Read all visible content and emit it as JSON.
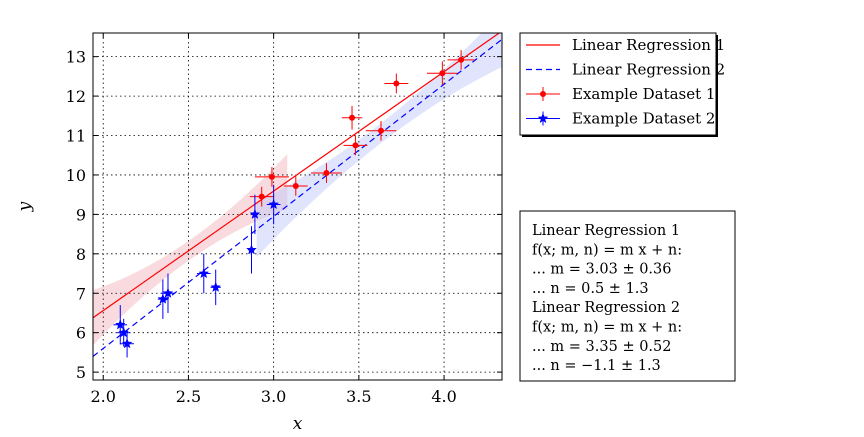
{
  "chart_data": {
    "type": "scatter",
    "xlabel": "x",
    "ylabel": "y",
    "xlim": [
      1.94,
      4.34
    ],
    "ylim": [
      4.8,
      13.6
    ],
    "grid": true,
    "legend_placement": "outside-top-right",
    "x_ticks": [
      "2.0",
      "2.5",
      "3.0",
      "3.5",
      "4.0"
    ],
    "y_ticks": [
      "5",
      "6",
      "7",
      "8",
      "9",
      "10",
      "11",
      "12",
      "13"
    ],
    "series": [
      {
        "name": "Example Dataset 1",
        "kind": "errorbar",
        "color": "#ff0000",
        "marker": "circle",
        "points": [
          {
            "x": 2.93,
            "y": 9.45,
            "xerr": 0.07,
            "yerr": 0.25
          },
          {
            "x": 2.99,
            "y": 9.95,
            "xerr": 0.1,
            "yerr": 0.25
          },
          {
            "x": 3.13,
            "y": 9.72,
            "xerr": 0.07,
            "yerr": 0.25
          },
          {
            "x": 3.31,
            "y": 10.05,
            "xerr": 0.09,
            "yerr": 0.25
          },
          {
            "x": 3.46,
            "y": 11.45,
            "xerr": 0.06,
            "yerr": 0.3
          },
          {
            "x": 3.48,
            "y": 10.75,
            "xerr": 0.07,
            "yerr": 0.25
          },
          {
            "x": 3.63,
            "y": 11.12,
            "xerr": 0.09,
            "yerr": 0.25
          },
          {
            "x": 3.72,
            "y": 12.32,
            "xerr": 0.07,
            "yerr": 0.25
          },
          {
            "x": 3.99,
            "y": 12.58,
            "xerr": 0.09,
            "yerr": 0.3
          },
          {
            "x": 4.1,
            "y": 12.92,
            "xerr": 0.08,
            "yerr": 0.25
          }
        ]
      },
      {
        "name": "Example Dataset 2",
        "kind": "errorbar",
        "color": "#0000ff",
        "marker": "star",
        "points": [
          {
            "x": 2.1,
            "y": 6.2,
            "xerr": 0.04,
            "yerr": 0.5
          },
          {
            "x": 2.12,
            "y": 6.0,
            "xerr": 0.04,
            "yerr": 0.35
          },
          {
            "x": 2.14,
            "y": 5.72,
            "xerr": 0.04,
            "yerr": 0.35
          },
          {
            "x": 2.35,
            "y": 6.85,
            "xerr": 0.03,
            "yerr": 0.5
          },
          {
            "x": 2.38,
            "y": 7.0,
            "xerr": 0.04,
            "yerr": 0.5
          },
          {
            "x": 2.59,
            "y": 7.5,
            "xerr": 0.04,
            "yerr": 0.5
          },
          {
            "x": 2.66,
            "y": 7.15,
            "xerr": 0.03,
            "yerr": 0.45
          },
          {
            "x": 2.87,
            "y": 8.1,
            "xerr": 0.02,
            "yerr": 0.6
          },
          {
            "x": 2.89,
            "y": 9.0,
            "xerr": 0.02,
            "yerr": 0.5
          },
          {
            "x": 3.0,
            "y": 9.25,
            "xerr": 0.04,
            "yerr": 0.5
          }
        ]
      },
      {
        "name": "Linear Regression 1",
        "kind": "line",
        "color": "#ff0000",
        "dash": "solid",
        "slope": 3.03,
        "intercept": 0.5,
        "band_color": "#f4b8bf",
        "band_range": [
          1.94,
          3.08
        ]
      },
      {
        "name": "Linear Regression 2",
        "kind": "line",
        "color": "#0000ff",
        "dash": "dashed",
        "slope": 3.35,
        "intercept": -1.1,
        "band_color": "#c2c9fa",
        "band_range": [
          2.9,
          4.34
        ]
      }
    ],
    "legend": [
      {
        "label": "Linear Regression 1",
        "color": "#ff0000",
        "style": "solid-line"
      },
      {
        "label": "Linear Regression 2",
        "color": "#0000ff",
        "style": "dashed-line"
      },
      {
        "label": "Example Dataset 1",
        "color": "#ff0000",
        "style": "errorbar-circle"
      },
      {
        "label": "Example Dataset 2",
        "color": "#0000ff",
        "style": "errorbar-star"
      }
    ],
    "annotation_box": [
      "Linear Regression 1",
      "f(x; m, n) = m x + n:",
      "... m = 3.03 ± 0.36",
      "... n = 0.5 ± 1.3",
      "Linear Regression 2",
      "f(x; m, n) = m x + n:",
      "... m = 3.35 ± 0.52",
      "... n = −1.1 ± 1.3"
    ]
  }
}
